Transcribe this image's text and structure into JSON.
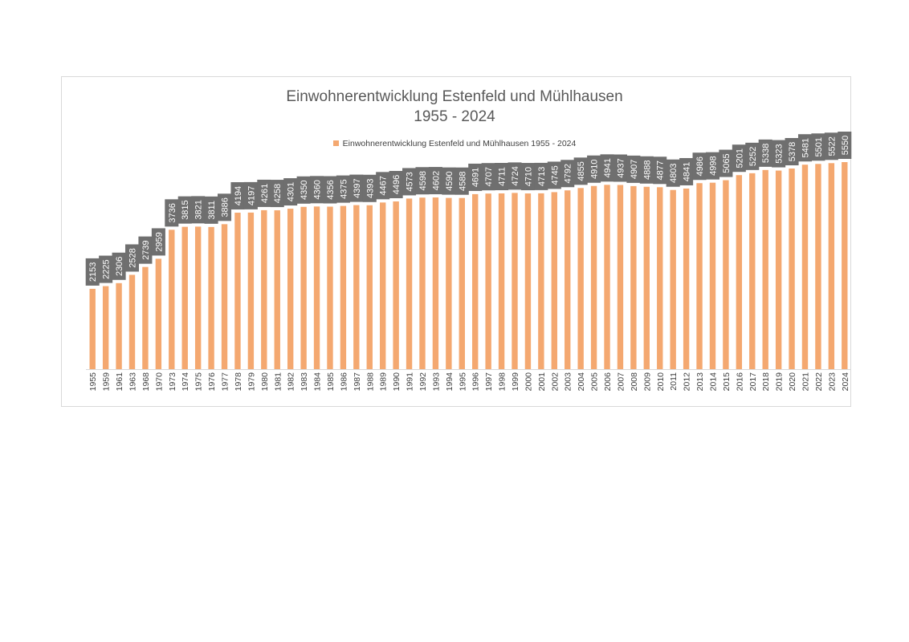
{
  "colors": {
    "bar": "#f4a870",
    "label_box": "#6f6f6f",
    "label_text": "#ffffff",
    "axis": "#d9d9d9",
    "tick_text": "#404040"
  },
  "chart_data": {
    "type": "bar",
    "title": "Einwohnerentwicklung Estenfeld und Mühlhausen",
    "subtitle": "1955 - 2024",
    "legend": "top",
    "grid": false,
    "categories": [
      "1955",
      "1959",
      "1961",
      "1963",
      "1968",
      "1970",
      "1973",
      "1974",
      "1975",
      "1976",
      "1977",
      "1978",
      "1979",
      "1980",
      "1981",
      "1982",
      "1983",
      "1984",
      "1985",
      "1986",
      "1987",
      "1988",
      "1989",
      "1990",
      "1991",
      "1992",
      "1993",
      "1994",
      "1995",
      "1996",
      "1997",
      "1998",
      "1999",
      "2000",
      "2001",
      "2002",
      "2003",
      "2004",
      "2005",
      "2006",
      "2007",
      "2008",
      "2009",
      "2010",
      "2011",
      "2012",
      "2013",
      "2014",
      "2015",
      "2016",
      "2017",
      "2018",
      "2019",
      "2020",
      "2021",
      "2022",
      "2023",
      "2024"
    ],
    "series": [
      {
        "name": "Einwohnerentwicklung Estenfeld und Mühlhausen 1955 - 2024",
        "values": [
          2153,
          2225,
          2306,
          2528,
          2739,
          2959,
          3736,
          3815,
          3821,
          3811,
          3886,
          4194,
          4197,
          4261,
          4258,
          4301,
          4350,
          4360,
          4356,
          4375,
          4397,
          4393,
          4467,
          4496,
          4573,
          4598,
          4602,
          4590,
          4588,
          4691,
          4707,
          4711,
          4724,
          4710,
          4713,
          4745,
          4792,
          4855,
          4910,
          4941,
          4937,
          4907,
          4888,
          4877,
          4803,
          4841,
          4986,
          4998,
          5065,
          5201,
          5252,
          5338,
          5323,
          5378,
          5481,
          5501,
          5522,
          5550
        ]
      }
    ],
    "ylim": [
      0,
      5550
    ]
  }
}
